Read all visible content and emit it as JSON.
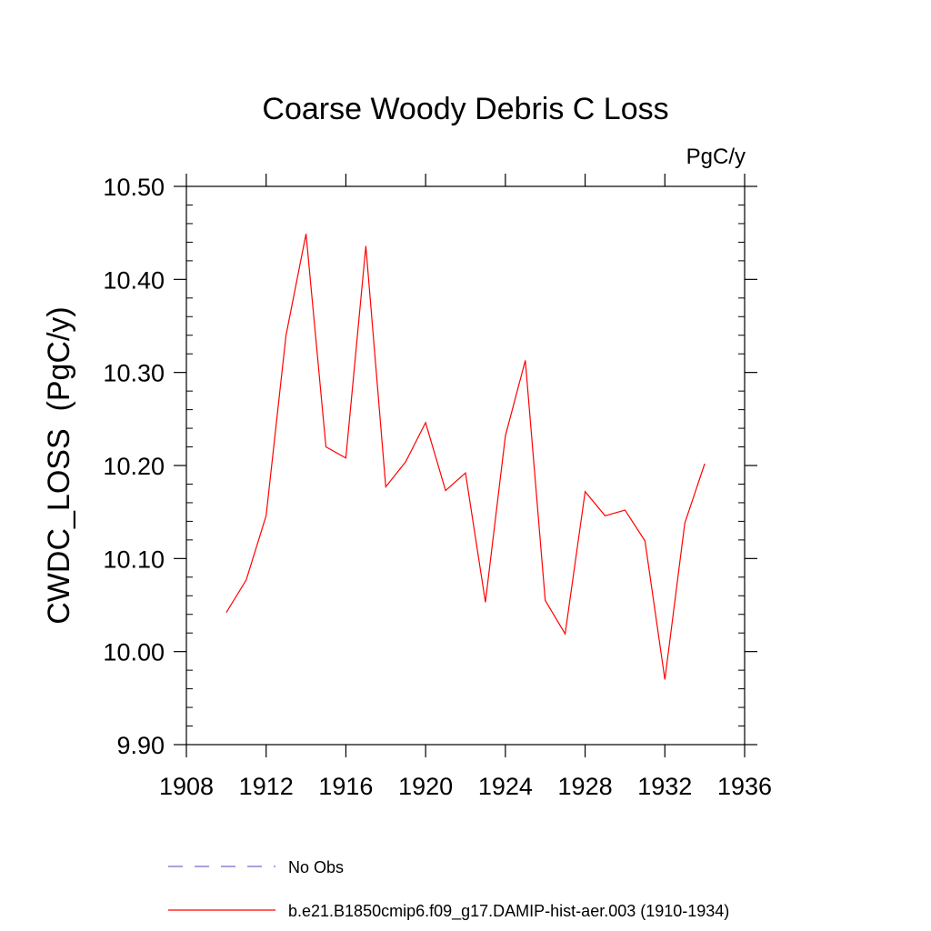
{
  "chart_data": {
    "type": "line",
    "title": "Coarse Woody Debris C Loss",
    "units": "PgC/y",
    "xlabel": "",
    "ylabel": "CWDC_LOSS  (PgC/y)",
    "xlim": [
      1908,
      1936
    ],
    "ylim": [
      9.9,
      10.5
    ],
    "x_ticks": [
      1908,
      1912,
      1916,
      1920,
      1924,
      1928,
      1932,
      1936
    ],
    "x_tick_labels": [
      "1908",
      "1912",
      "1916",
      "1920",
      "1924",
      "1928",
      "1932",
      "1936"
    ],
    "y_ticks": [
      9.9,
      10.0,
      10.1,
      10.2,
      10.3,
      10.4,
      10.5
    ],
    "y_tick_labels": [
      "9.90",
      "10.00",
      "10.10",
      "10.20",
      "10.30",
      "10.40",
      "10.50"
    ],
    "grid": false,
    "legend_position": "bottom",
    "series": [
      {
        "name": "No Obs",
        "color": "#7b68c8",
        "style": "dashed",
        "x": [],
        "values": []
      },
      {
        "name": "b.e21.B1850cmip6.f09_g17.DAMIP-hist-aer.003 (1910-1934)",
        "color": "#ff0000",
        "style": "solid",
        "x": [
          1910,
          1911,
          1912,
          1913,
          1914,
          1915,
          1916,
          1917,
          1918,
          1919,
          1920,
          1921,
          1922,
          1923,
          1924,
          1925,
          1926,
          1927,
          1928,
          1929,
          1930,
          1931,
          1932,
          1933,
          1934
        ],
        "values": [
          10.042,
          10.077,
          10.146,
          10.34,
          10.449,
          10.22,
          10.208,
          10.436,
          10.177,
          10.204,
          10.246,
          10.173,
          10.192,
          10.053,
          10.232,
          10.313,
          10.055,
          10.019,
          10.172,
          10.146,
          10.152,
          10.119,
          9.97,
          10.138,
          10.202
        ]
      }
    ]
  }
}
